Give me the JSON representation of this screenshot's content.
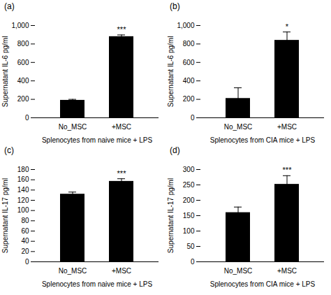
{
  "chart_data": [
    {
      "type": "bar",
      "title": "(a)",
      "ylabel": "Supernatant IL-6 pg/ml",
      "xlabel": "Splenocytes from naive mice + LPS",
      "categories": [
        "No_MSC",
        "+MSC"
      ],
      "values": [
        190,
        880
      ],
      "errors": [
        10,
        18
      ],
      "color": "#000000",
      "ylim": [
        0,
        1000
      ],
      "yticks": [
        0,
        200,
        400,
        600,
        800,
        1000
      ],
      "annotations": [
        {
          "category": "+MSC",
          "text": "***"
        }
      ]
    },
    {
      "type": "bar",
      "title": "(b)",
      "ylabel": "Supernatant IL-6 pg/ml",
      "xlabel": "Splenocytes from CIA mice + LPS",
      "categories": [
        "No_MSC",
        "+MSC"
      ],
      "values": [
        210,
        840
      ],
      "errors": [
        115,
        90
      ],
      "color": "#000000",
      "ylim": [
        0,
        1000
      ],
      "yticks": [
        0,
        200,
        400,
        600,
        800,
        1000
      ],
      "annotations": [
        {
          "category": "+MSC",
          "text": "*"
        }
      ]
    },
    {
      "type": "bar",
      "title": "(c)",
      "ylabel": "Supernatant IL-17 pg/ml",
      "xlabel": "Splenocytes from naive mice + LPS",
      "categories": [
        "No_MSC",
        "+MSC"
      ],
      "values": [
        132,
        157
      ],
      "errors": [
        4,
        5
      ],
      "color": "#000000",
      "ylim": [
        0,
        180
      ],
      "yticks": [
        0,
        20,
        40,
        60,
        80,
        100,
        120,
        140,
        160,
        180
      ],
      "annotations": [
        {
          "category": "+MSC",
          "text": "***"
        }
      ]
    },
    {
      "type": "bar",
      "title": "(d)",
      "ylabel": "Supernatant IL-17 pg/ml",
      "xlabel": "Splenocytes from CIA mice + LPS",
      "categories": [
        "No_MSC",
        "+MSC"
      ],
      "values": [
        160,
        252
      ],
      "errors": [
        18,
        28
      ],
      "color": "#000000",
      "ylim": [
        0,
        300
      ],
      "yticks": [
        0,
        50,
        100,
        150,
        200,
        250,
        300
      ],
      "annotations": [
        {
          "category": "+MSC",
          "text": "***"
        }
      ]
    }
  ]
}
